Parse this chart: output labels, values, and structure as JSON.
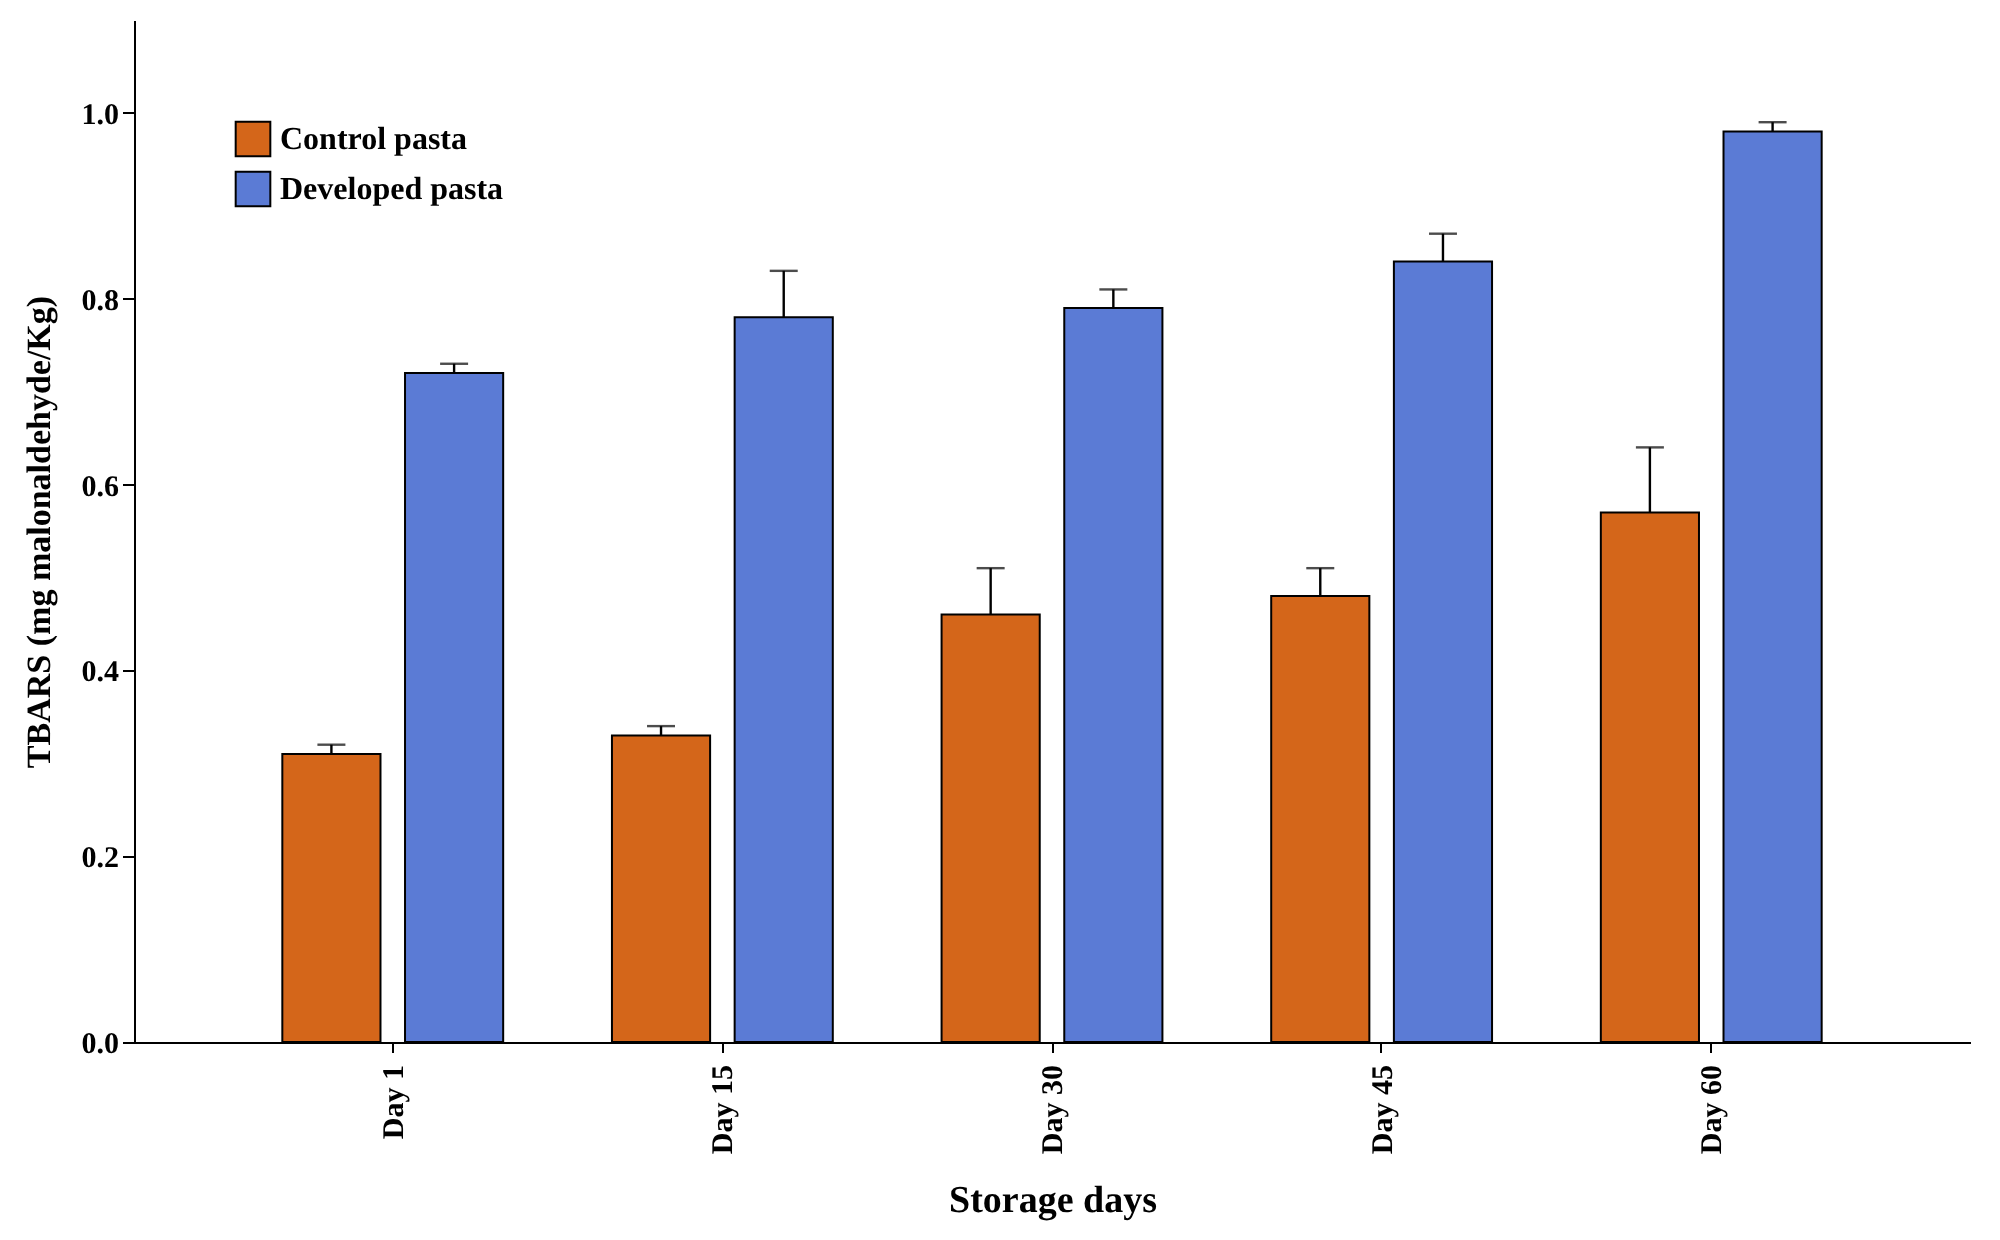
{
  "chart_data": {
    "type": "bar",
    "xlabel": "Storage days",
    "ylabel": "TBARS (mg malonaldehyde/Kg)",
    "categories": [
      "Day 1",
      "Day 15",
      "Day 30",
      "Day 45",
      "Day 60"
    ],
    "series": [
      {
        "name": "Control pasta",
        "color": "#d4661a",
        "values": [
          0.31,
          0.33,
          0.46,
          0.48,
          0.57
        ],
        "errors": [
          [
            0.31,
            0.32
          ],
          [
            0.33,
            0.34
          ],
          [
            0.46,
            0.51
          ],
          [
            0.48,
            0.51
          ],
          [
            0.57,
            0.64
          ]
        ]
      },
      {
        "name": "Developed pasta",
        "color": "#5b7bd5",
        "values": [
          0.72,
          0.78,
          0.79,
          0.84,
          0.98
        ],
        "errors": [
          [
            0.72,
            0.73
          ],
          [
            0.78,
            0.83
          ],
          [
            0.79,
            0.81
          ],
          [
            0.84,
            0.87
          ],
          [
            0.98,
            0.99
          ]
        ]
      }
    ],
    "ylim": [
      0,
      1.1
    ],
    "yticks": [
      {
        "value": 0,
        "label": "0.0"
      },
      {
        "value": 0.2,
        "label": "0.2"
      },
      {
        "value": 0.4,
        "label": "0.4"
      },
      {
        "value": 0.6,
        "label": "0.6"
      },
      {
        "value": 0.8,
        "label": "0.8"
      },
      {
        "value": 1,
        "label": "1.0"
      }
    ],
    "legend": "top left",
    "grid": false
  }
}
